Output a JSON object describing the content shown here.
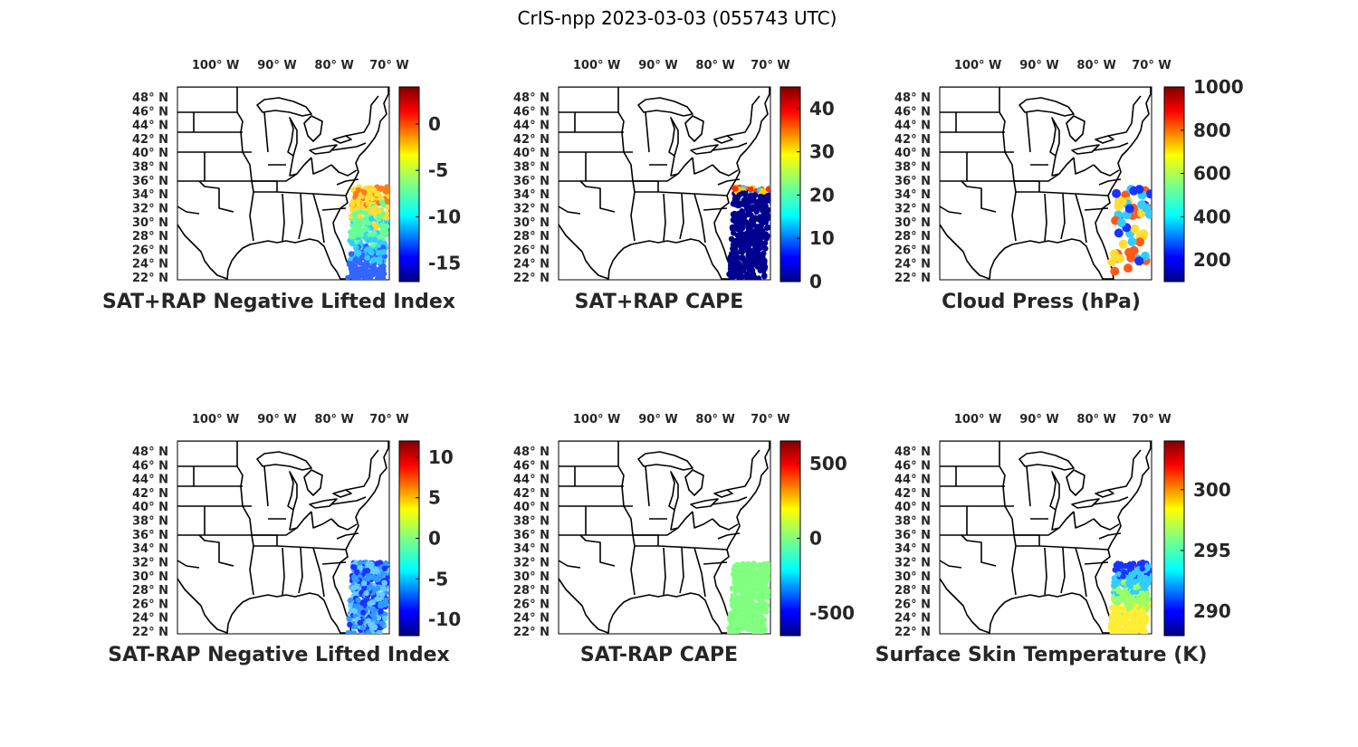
{
  "figure": {
    "title": "CrIS-npp 2023-03-03 (055743 UTC)",
    "lon_labels": [
      "100° W",
      "90° W",
      "80° W",
      "70° W"
    ],
    "lat_labels": [
      "48° N",
      "46° N",
      "44° N",
      "42° N",
      "40° N",
      "38° N",
      "36° N",
      "34° N",
      "32° N",
      "30° N",
      "28° N",
      "26° N",
      "24° N",
      "22° N"
    ]
  },
  "panels": [
    {
      "title": "SAT+RAP Negative Lifted Index",
      "colorbar": {
        "colormap": "jet",
        "range": [
          -17,
          4
        ],
        "ticks": [
          0,
          -5,
          -10,
          -15
        ]
      },
      "swath": {
        "lat_range": [
          22,
          35
        ],
        "dominant_colors": [
          "#ff7a1a",
          "#ffdd33",
          "#66ff99",
          "#33ccff",
          "#3366ff"
        ]
      }
    },
    {
      "title": "SAT+RAP CAPE",
      "colorbar": {
        "colormap": "jet",
        "range": [
          0,
          45
        ],
        "ticks": [
          40,
          30,
          20,
          10,
          0
        ]
      },
      "swath": {
        "lat_range": [
          22,
          35
        ],
        "dominant_colors": [
          "#00008f",
          "#ffcc00",
          "#ff3300",
          "#33ccff"
        ]
      }
    },
    {
      "title": "Cloud Press (hPa)",
      "colorbar": {
        "colormap": "jet",
        "range": [
          100,
          1000
        ],
        "ticks": [
          1000,
          800,
          600,
          400,
          200
        ]
      },
      "swath": {
        "lat_range": [
          23,
          35
        ],
        "dominant_colors": [
          "#ff5a1a",
          "#1a33ff",
          "#33ccff",
          "#ffdd33"
        ]
      }
    },
    {
      "title": "SAT-RAP Negative Lifted Index",
      "colorbar": {
        "colormap": "jet",
        "range": [
          -12,
          12
        ],
        "ticks": [
          10,
          5,
          0,
          -5,
          -10
        ]
      },
      "swath": {
        "lat_range": [
          22,
          32
        ],
        "dominant_colors": [
          "#1a33ff",
          "#3399ff",
          "#66ccff"
        ]
      }
    },
    {
      "title": "SAT-RAP CAPE",
      "colorbar": {
        "colormap": "jet",
        "range": [
          -650,
          650
        ],
        "ticks": [
          500,
          0,
          -500
        ]
      },
      "swath": {
        "lat_range": [
          22,
          32
        ],
        "dominant_colors": [
          "#80ff80"
        ]
      }
    },
    {
      "title": "Surface Skin Temperature (K)",
      "colorbar": {
        "colormap": "jet",
        "range": [
          288,
          304
        ],
        "ticks": [
          300,
          295,
          290
        ]
      },
      "swath": {
        "lat_range": [
          22,
          32
        ],
        "dominant_colors": [
          "#1a33ff",
          "#33ccff",
          "#99ff66",
          "#ffee33"
        ]
      }
    }
  ]
}
